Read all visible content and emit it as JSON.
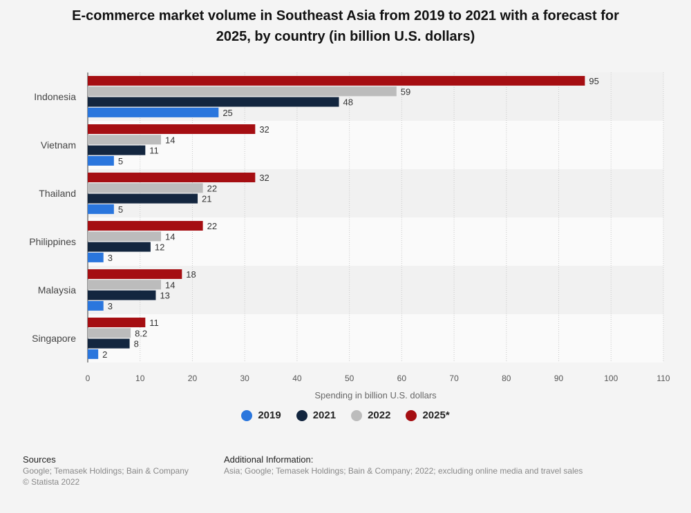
{
  "title_line1": "E-commerce market volume in Southeast Asia from 2019 to 2021 with a forecast for",
  "title_line2": "2025, by country (in billion U.S. dollars)",
  "chart_data": {
    "type": "bar",
    "orientation": "horizontal",
    "categories": [
      "Indonesia",
      "Vietnam",
      "Thailand",
      "Philippines",
      "Malaysia",
      "Singapore"
    ],
    "series": [
      {
        "name": "2025*",
        "color": "#a50e12",
        "values": [
          95,
          32,
          32,
          22,
          18,
          11
        ],
        "labels": [
          "95",
          "32",
          "32",
          "22",
          "18",
          "11"
        ]
      },
      {
        "name": "2022",
        "color": "#bcbcbc",
        "values": [
          59,
          14,
          22,
          14,
          14,
          8.2
        ],
        "labels": [
          "59",
          "14",
          "22",
          "14",
          "14",
          "8.2"
        ]
      },
      {
        "name": "2021",
        "color": "#13263f",
        "values": [
          48,
          11,
          21,
          12,
          13,
          8
        ],
        "labels": [
          "48",
          "11",
          "21",
          "12",
          "13",
          "8"
        ]
      },
      {
        "name": "2019",
        "color": "#2a76dd",
        "values": [
          25,
          5,
          5,
          3,
          3,
          2
        ],
        "labels": [
          "25",
          "5",
          "5",
          "3",
          "3",
          "2"
        ]
      }
    ],
    "xlabel": "Spending in billion U.S. dollars",
    "xlim": [
      0,
      110
    ],
    "xticks": [
      "0",
      "10",
      "20",
      "30",
      "40",
      "50",
      "60",
      "70",
      "80",
      "90",
      "100",
      "110"
    ],
    "grid": "vertical dotted",
    "legend_order": [
      "2019",
      "2021",
      "2022",
      "2025*"
    ],
    "legend_position": "bottom"
  },
  "footer": {
    "sources_heading": "Sources",
    "sources_text": "Google; Temasek Holdings; Bain & Company",
    "copyright": "© Statista 2022",
    "info_heading": "Additional Information:",
    "info_text": "Asia; Google; Temasek Holdings; Bain & Company; 2022; excluding online media and travel sales"
  }
}
